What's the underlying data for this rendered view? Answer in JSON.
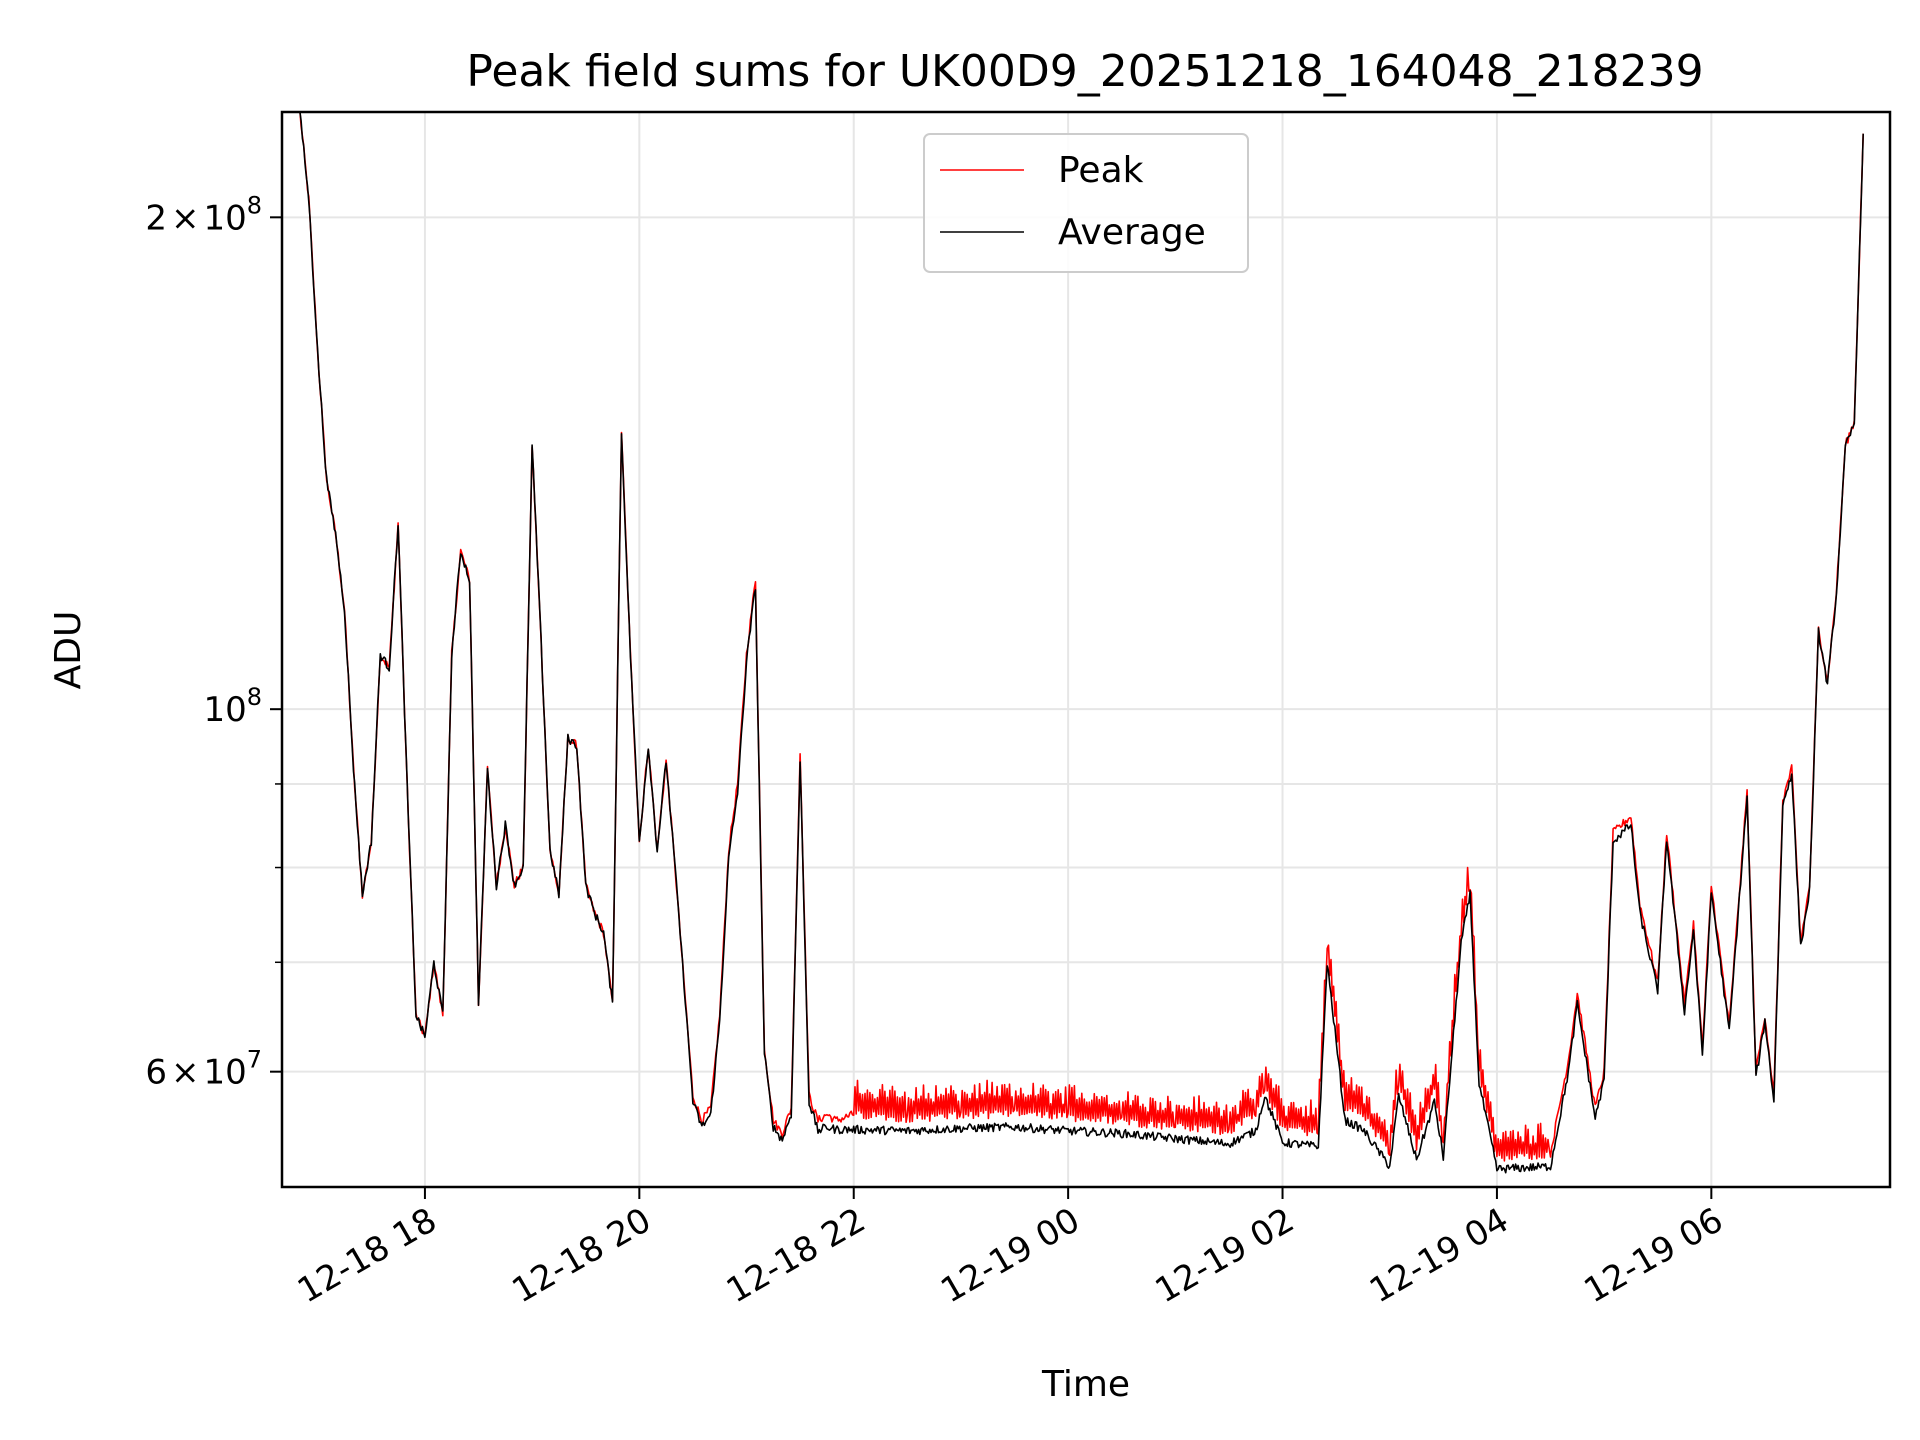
{
  "chart_data": {
    "type": "line",
    "title": "Peak field sums for UK00D9_20251218_164048_218239",
    "xlabel": "Time",
    "ylabel": "ADU",
    "yscale": "log",
    "grid": true,
    "legend_position": "top-center",
    "xlim": [
      "2025-12-18 16:40",
      "2025-12-19 07:40"
    ],
    "ylim": [
      51000000,
      232000000
    ],
    "x_ticks": [
      {
        "value": "2025-12-18 18:00",
        "label": "12-18 18"
      },
      {
        "value": "2025-12-18 20:00",
        "label": "12-18 20"
      },
      {
        "value": "2025-12-18 22:00",
        "label": "12-18 22"
      },
      {
        "value": "2025-12-19 00:00",
        "label": "12-19 00"
      },
      {
        "value": "2025-12-19 02:00",
        "label": "12-19 02"
      },
      {
        "value": "2025-12-19 04:00",
        "label": "12-19 04"
      },
      {
        "value": "2025-12-19 06:00",
        "label": "12-19 06"
      }
    ],
    "y_ticks_major": [
      {
        "value": 200000000,
        "mantissa": "2",
        "times": "×",
        "base": "10",
        "exp": "8"
      },
      {
        "value": 100000000,
        "mantissa": "",
        "times": "",
        "base": "10",
        "exp": "8"
      },
      {
        "value": 60000000,
        "mantissa": "6",
        "times": "×",
        "base": "10",
        "exp": "7"
      }
    ],
    "y_ticks_minor": [
      70000000,
      80000000,
      90000000
    ],
    "series": [
      {
        "name": "Peak",
        "color": "#ff0000",
        "x": [
          "2025-12-18 16:50",
          "2025-12-18 16:55",
          "2025-12-18 17:00",
          "2025-12-18 17:05",
          "2025-12-18 17:10",
          "2025-12-18 17:15",
          "2025-12-18 17:20",
          "2025-12-18 17:25",
          "2025-12-18 17:30",
          "2025-12-18 17:35",
          "2025-12-18 17:40",
          "2025-12-18 17:45",
          "2025-12-18 17:50",
          "2025-12-18 17:55",
          "2025-12-18 18:00",
          "2025-12-18 18:05",
          "2025-12-18 18:10",
          "2025-12-18 18:15",
          "2025-12-18 18:20",
          "2025-12-18 18:25",
          "2025-12-18 18:30",
          "2025-12-18 18:35",
          "2025-12-18 18:40",
          "2025-12-18 18:45",
          "2025-12-18 18:50",
          "2025-12-18 18:55",
          "2025-12-18 19:00",
          "2025-12-18 19:05",
          "2025-12-18 19:10",
          "2025-12-18 19:15",
          "2025-12-18 19:20",
          "2025-12-18 19:25",
          "2025-12-18 19:30",
          "2025-12-18 19:35",
          "2025-12-18 19:40",
          "2025-12-18 19:45",
          "2025-12-18 19:50",
          "2025-12-18 19:55",
          "2025-12-18 20:00",
          "2025-12-18 20:05",
          "2025-12-18 20:10",
          "2025-12-18 20:15",
          "2025-12-18 20:20",
          "2025-12-18 20:25",
          "2025-12-18 20:30",
          "2025-12-18 20:35",
          "2025-12-18 20:40",
          "2025-12-18 20:45",
          "2025-12-18 20:50",
          "2025-12-18 20:55",
          "2025-12-18 21:00",
          "2025-12-18 21:05",
          "2025-12-18 21:10",
          "2025-12-18 21:15",
          "2025-12-18 21:20",
          "2025-12-18 21:25",
          "2025-12-18 21:30",
          "2025-12-18 21:35",
          "2025-12-18 21:40",
          "2025-12-18 21:45",
          "2025-12-18 21:50",
          "2025-12-18 22:00",
          "2025-12-18 22:30",
          "2025-12-18 23:00",
          "2025-12-18 23:30",
          "2025-12-19 00:00",
          "2025-12-19 00:30",
          "2025-12-19 01:00",
          "2025-12-19 01:30",
          "2025-12-19 01:45",
          "2025-12-19 01:50",
          "2025-12-19 02:00",
          "2025-12-19 02:20",
          "2025-12-19 02:25",
          "2025-12-19 02:35",
          "2025-12-19 02:45",
          "2025-12-19 03:00",
          "2025-12-19 03:05",
          "2025-12-19 03:15",
          "2025-12-19 03:25",
          "2025-12-19 03:30",
          "2025-12-19 03:40",
          "2025-12-19 03:45",
          "2025-12-19 03:50",
          "2025-12-19 04:00",
          "2025-12-19 04:30",
          "2025-12-19 04:40",
          "2025-12-19 04:45",
          "2025-12-19 04:55",
          "2025-12-19 05:00",
          "2025-12-19 05:05",
          "2025-12-19 05:15",
          "2025-12-19 05:20",
          "2025-12-19 05:30",
          "2025-12-19 05:35",
          "2025-12-19 05:45",
          "2025-12-19 05:50",
          "2025-12-19 05:55",
          "2025-12-19 06:00",
          "2025-12-19 06:10",
          "2025-12-19 06:20",
          "2025-12-19 06:25",
          "2025-12-19 06:30",
          "2025-12-19 06:35",
          "2025-12-19 06:40",
          "2025-12-19 06:45",
          "2025-12-19 06:50",
          "2025-12-19 06:55",
          "2025-12-19 07:00",
          "2025-12-19 07:05",
          "2025-12-19 07:10",
          "2025-12-19 07:15",
          "2025-12-19 07:20",
          "2025-12-19 07:25"
        ],
        "values": [
          232000000,
          205000000,
          165000000,
          138000000,
          128000000,
          115000000,
          92000000,
          77000000,
          83000000,
          108000000,
          106000000,
          130000000,
          90000000,
          65000000,
          63000000,
          70000000,
          65000000,
          108000000,
          125000000,
          120000000,
          66000000,
          92000000,
          78000000,
          85000000,
          78000000,
          80000000,
          145000000,
          110000000,
          82000000,
          77000000,
          96000000,
          95000000,
          78000000,
          75000000,
          73000000,
          66000000,
          148000000,
          108000000,
          83000000,
          95000000,
          82000000,
          93000000,
          80000000,
          68000000,
          58000000,
          56000000,
          57000000,
          65000000,
          82000000,
          90000000,
          108000000,
          120000000,
          62000000,
          56000000,
          55000000,
          57000000,
          94000000,
          58000000,
          56000000,
          56500000,
          56000000,
          56500000,
          56200000,
          56400000,
          56600000,
          56300000,
          56000000,
          55500000,
          55200000,
          56500000,
          58500000,
          55500000,
          55000000,
          71000000,
          57000000,
          56500000,
          53500000,
          59000000,
          54000000,
          58500000,
          54000000,
          73000000,
          78000000,
          60000000,
          53000000,
          53500000,
          61000000,
          67000000,
          57000000,
          60000000,
          84000000,
          86000000,
          76000000,
          68000000,
          84000000,
          66000000,
          74000000,
          62000000,
          78000000,
          64000000,
          89000000,
          60000000,
          65000000,
          58000000,
          88000000,
          92000000,
          72000000,
          78000000,
          112000000,
          104000000,
          118000000,
          145000000,
          150000000,
          225000000
        ],
        "noise_start": "2025-12-18 22:00",
        "noise_end": "2025-12-19 04:30"
      },
      {
        "name": "Average",
        "color": "#000000",
        "x": [
          "2025-12-18 16:50",
          "2025-12-18 16:55",
          "2025-12-18 17:00",
          "2025-12-18 17:05",
          "2025-12-18 17:10",
          "2025-12-18 17:15",
          "2025-12-18 17:20",
          "2025-12-18 17:25",
          "2025-12-18 17:30",
          "2025-12-18 17:35",
          "2025-12-18 17:40",
          "2025-12-18 17:45",
          "2025-12-18 17:50",
          "2025-12-18 17:55",
          "2025-12-18 18:00",
          "2025-12-18 18:05",
          "2025-12-18 18:10",
          "2025-12-18 18:15",
          "2025-12-18 18:20",
          "2025-12-18 18:25",
          "2025-12-18 18:30",
          "2025-12-18 18:35",
          "2025-12-18 18:40",
          "2025-12-18 18:45",
          "2025-12-18 18:50",
          "2025-12-18 18:55",
          "2025-12-18 19:00",
          "2025-12-18 19:05",
          "2025-12-18 19:10",
          "2025-12-18 19:15",
          "2025-12-18 19:20",
          "2025-12-18 19:25",
          "2025-12-18 19:30",
          "2025-12-18 19:35",
          "2025-12-18 19:40",
          "2025-12-18 19:45",
          "2025-12-18 19:50",
          "2025-12-18 19:55",
          "2025-12-18 20:00",
          "2025-12-18 20:05",
          "2025-12-18 20:10",
          "2025-12-18 20:15",
          "2025-12-18 20:20",
          "2025-12-18 20:25",
          "2025-12-18 20:30",
          "2025-12-18 20:35",
          "2025-12-18 20:40",
          "2025-12-18 20:45",
          "2025-12-18 20:50",
          "2025-12-18 20:55",
          "2025-12-18 21:00",
          "2025-12-18 21:05",
          "2025-12-18 21:10",
          "2025-12-18 21:15",
          "2025-12-18 21:20",
          "2025-12-18 21:25",
          "2025-12-18 21:30",
          "2025-12-18 21:35",
          "2025-12-18 21:40",
          "2025-12-18 21:45",
          "2025-12-18 21:50",
          "2025-12-18 22:00",
          "2025-12-18 22:30",
          "2025-12-18 23:00",
          "2025-12-18 23:30",
          "2025-12-19 00:00",
          "2025-12-19 00:30",
          "2025-12-19 01:00",
          "2025-12-19 01:30",
          "2025-12-19 01:45",
          "2025-12-19 01:50",
          "2025-12-19 02:00",
          "2025-12-19 02:20",
          "2025-12-19 02:25",
          "2025-12-19 02:35",
          "2025-12-19 02:45",
          "2025-12-19 03:00",
          "2025-12-19 03:05",
          "2025-12-19 03:15",
          "2025-12-19 03:25",
          "2025-12-19 03:30",
          "2025-12-19 03:40",
          "2025-12-19 03:45",
          "2025-12-19 03:50",
          "2025-12-19 04:00",
          "2025-12-19 04:30",
          "2025-12-19 04:40",
          "2025-12-19 04:45",
          "2025-12-19 04:55",
          "2025-12-19 05:00",
          "2025-12-19 05:05",
          "2025-12-19 05:15",
          "2025-12-19 05:20",
          "2025-12-19 05:30",
          "2025-12-19 05:35",
          "2025-12-19 05:45",
          "2025-12-19 05:50",
          "2025-12-19 05:55",
          "2025-12-19 06:00",
          "2025-12-19 06:10",
          "2025-12-19 06:20",
          "2025-12-19 06:25",
          "2025-12-19 06:30",
          "2025-12-19 06:35",
          "2025-12-19 06:40",
          "2025-12-19 06:45",
          "2025-12-19 06:50",
          "2025-12-19 06:55",
          "2025-12-19 07:00",
          "2025-12-19 07:05",
          "2025-12-19 07:10",
          "2025-12-19 07:15",
          "2025-12-19 07:20",
          "2025-12-19 07:25"
        ],
        "values": [
          232000000,
          205000000,
          165000000,
          138000000,
          128000000,
          115000000,
          92000000,
          77000000,
          83000000,
          108000000,
          106000000,
          130000000,
          90000000,
          65000000,
          63000000,
          70000000,
          65000000,
          108000000,
          125000000,
          120000000,
          66000000,
          92000000,
          78000000,
          85000000,
          78000000,
          80000000,
          145000000,
          110000000,
          82000000,
          77000000,
          96000000,
          95000000,
          78000000,
          75000000,
          73000000,
          66000000,
          148000000,
          108000000,
          83000000,
          95000000,
          82000000,
          93000000,
          80000000,
          68000000,
          57500000,
          55500000,
          56500000,
          64500000,
          81000000,
          89000000,
          107000000,
          119000000,
          61500000,
          55500000,
          54500000,
          56500000,
          93000000,
          57500000,
          55200000,
          55500000,
          55300000,
          55300000,
          55200000,
          55400000,
          55500000,
          55200000,
          55000000,
          54600000,
          54200000,
          55200000,
          58000000,
          54300000,
          54000000,
          70000000,
          56000000,
          55300000,
          52500000,
          58000000,
          53000000,
          57500000,
          53200000,
          72000000,
          77000000,
          59000000,
          52300000,
          52500000,
          60000000,
          66000000,
          56200000,
          59300000,
          83000000,
          85000000,
          75000000,
          67300000,
          83300000,
          65300000,
          73300000,
          61500000,
          77300000,
          63500000,
          88300000,
          59500000,
          64500000,
          57600000,
          87300000,
          91500000,
          71500000,
          77500000,
          111500000,
          103500000,
          117500000,
          144500000,
          149500000,
          225000000
        ]
      }
    ]
  }
}
